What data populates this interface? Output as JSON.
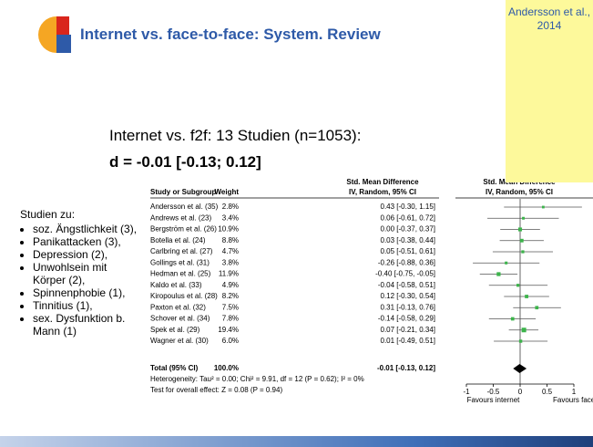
{
  "title": "Internet vs. face-to-face: System. Review",
  "reference": "Andersson et al., 2014",
  "summary_line": "Internet vs. f2f: 13 Studien (n=1053):",
  "summary_effect": "d = -0.01 [-0.13; 0.12]",
  "studien": {
    "heading": "Studien zu:",
    "items": [
      "soz. Ängstlichkeit (3),",
      "Panikattacken (3),",
      "Depression (2),",
      "Unwohlsein mit Körper (2),",
      "Spinnenphobie (1),",
      "Tinnitius (1),",
      "sex. Dysfunktion b. Mann (1)"
    ]
  },
  "table": {
    "headers": {
      "study": "Study or Subgroup",
      "weight": "Weight",
      "effect_title": "Std. Mean Difference",
      "effect_method": "IV, Random, 95% CI"
    },
    "rows": [
      {
        "study": "Andersson et al. (35)",
        "weight": "2.8%",
        "ci": "0.43 [-0.30, 1.15]"
      },
      {
        "study": "Andrews et al. (23)",
        "weight": "3.4%",
        "ci": "0.06 [-0.61, 0.72]"
      },
      {
        "study": "Bergström et al. (26)",
        "weight": "10.9%",
        "ci": "0.00 [-0.37, 0.37]"
      },
      {
        "study": "Botella et al. (24)",
        "weight": "8.8%",
        "ci": "0.03 [-0.38, 0.44]"
      },
      {
        "study": "Carlbring et al. (27)",
        "weight": "4.7%",
        "ci": "0.05 [-0.51, 0.61]"
      },
      {
        "study": "Gollings et al. (31)",
        "weight": "3.8%",
        "ci": "-0.26 [-0.88, 0.36]"
      },
      {
        "study": "Hedman et al. (25)",
        "weight": "11.9%",
        "ci": "-0.40 [-0.75, -0.05]"
      },
      {
        "study": "Kaldo et al. (33)",
        "weight": "4.9%",
        "ci": "-0.04 [-0.58, 0.51]"
      },
      {
        "study": "Kiropoulus et al. (28)",
        "weight": "8.2%",
        "ci": "0.12 [-0.30, 0.54]"
      },
      {
        "study": "Paxton et al. (32)",
        "weight": "7.5%",
        "ci": "0.31 [-0.13, 0.76]"
      },
      {
        "study": "Schover et al. (34)",
        "weight": "7.8%",
        "ci": "-0.14 [-0.58, 0.29]"
      },
      {
        "study": "Spek et al. (29)",
        "weight": "19.4%",
        "ci": "0.07 [-0.21, 0.34]"
      },
      {
        "study": "Wagner et al. (30)",
        "weight": "6.0%",
        "ci": "0.01 [-0.49, 0.51]"
      }
    ],
    "total": {
      "study": "Total (95% CI)",
      "weight": "100.0%",
      "ci": "-0.01 [-0.13, 0.12]"
    },
    "heterogeneity": "Heterogeneity: Tau² = 0.00; Chi² = 9.91, df = 12 (P = 0.62); I² = 0%",
    "overall": "Test for overall effect: Z = 0.08 (P = 0.94)"
  },
  "chart_data": {
    "type": "forest",
    "title": "Std. Mean Difference",
    "subtitle": "IV, Random, 95% CI",
    "estimates": [
      0.43,
      0.06,
      0.0,
      0.03,
      0.05,
      -0.26,
      -0.4,
      -0.04,
      0.12,
      0.31,
      -0.14,
      0.07,
      0.01
    ],
    "lower": [
      -0.3,
      -0.61,
      -0.37,
      -0.38,
      -0.51,
      -0.88,
      -0.75,
      -0.58,
      -0.3,
      -0.13,
      -0.58,
      -0.21,
      -0.49
    ],
    "upper": [
      1.15,
      0.72,
      0.37,
      0.44,
      0.61,
      0.36,
      -0.05,
      0.51,
      0.54,
      0.76,
      0.29,
      0.34,
      0.51
    ],
    "weights": [
      2.8,
      3.4,
      10.9,
      8.8,
      4.7,
      3.8,
      11.9,
      4.9,
      8.2,
      7.5,
      7.8,
      19.4,
      6.0
    ],
    "total": {
      "estimate": -0.01,
      "lower": -0.13,
      "upper": 0.12
    },
    "xlim": [
      -1,
      1
    ],
    "xticks": [
      -1,
      -0.5,
      0,
      0.5,
      1
    ],
    "left_label": "Favours internet",
    "right_label": "Favours face-to-fac",
    "color": "#3cb44b"
  }
}
